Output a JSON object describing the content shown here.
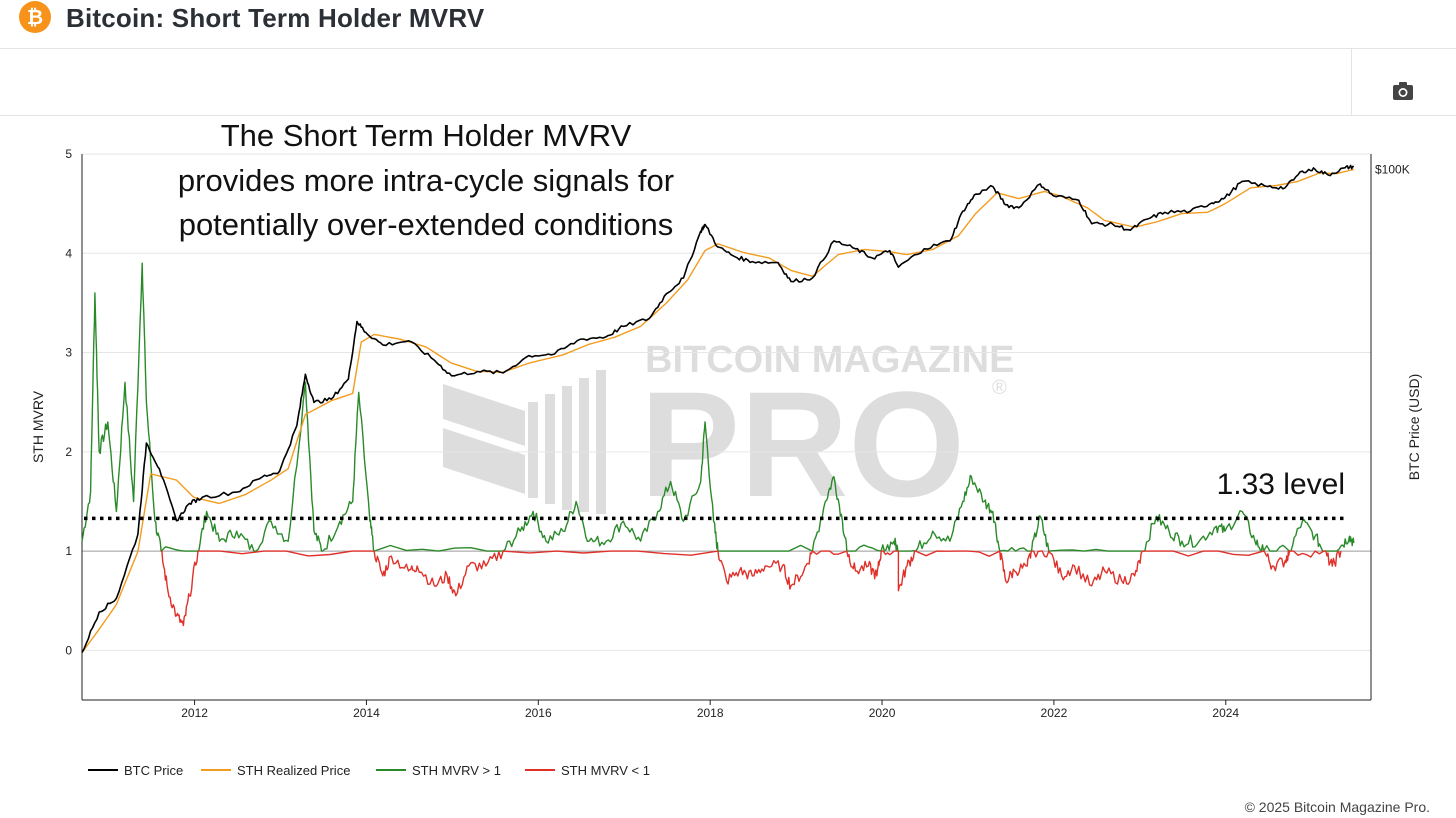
{
  "header": {
    "logo_glyph": "₿",
    "title": "Bitcoin: Short Term Holder MVRV"
  },
  "toolbar": {
    "screenshot_icon": "camera-icon"
  },
  "annotation": {
    "lines": [
      "The Short Term Holder MVRV",
      "provides more intra-cycle signals for",
      "potentially over-extended conditions"
    ],
    "level_label": "1.33 level"
  },
  "watermark": {
    "top": "BITCOIN MAGAZINE",
    "bottom": "PRO",
    "reg": "®"
  },
  "footer": {
    "copyright": "© 2025 Bitcoin Magazine Pro."
  },
  "colors": {
    "btc_price": "#000000",
    "sth_realized": "#f39c1f",
    "mvrv_above": "#2a8a2a",
    "mvrv_below": "#e0302a",
    "level_line": "#000000",
    "grid": "#e6e6e6"
  },
  "chart_data": {
    "type": "line",
    "title": "Bitcoin: Short Term Holder MVRV",
    "ylabel": "STH MVRV",
    "y2label": "BTC Price (USD)",
    "ylim": [
      -0.5,
      5
    ],
    "yticks": [
      "0",
      "1",
      "2",
      "3",
      "4",
      "5"
    ],
    "xticks": [
      "2012",
      "2014",
      "2016",
      "2018",
      "2020",
      "2022",
      "2024"
    ],
    "xlim": [
      2010.7,
      2025.7
    ],
    "y2_scale": "log",
    "y2_tick_label": "$100K",
    "legend_position": "bottom-left",
    "grid": true,
    "reference_lines": [
      {
        "y": 1,
        "style": "solid"
      },
      {
        "y": 1.33,
        "style": "dotted",
        "label": "1.33 level"
      }
    ],
    "series": [
      {
        "name": "BTC Price",
        "axis": "y2",
        "points": [
          [
            2010.7,
            0.06
          ],
          [
            2010.9,
            0.2
          ],
          [
            2011.1,
            0.3
          ],
          [
            2011.35,
            2
          ],
          [
            2011.45,
            30
          ],
          [
            2011.6,
            14
          ],
          [
            2011.8,
            3
          ],
          [
            2011.95,
            5
          ],
          [
            2012.1,
            6
          ],
          [
            2012.5,
            7
          ],
          [
            2012.8,
            11
          ],
          [
            2013.0,
            13
          ],
          [
            2013.2,
            50
          ],
          [
            2013.3,
            230
          ],
          [
            2013.4,
            100
          ],
          [
            2013.6,
            110
          ],
          [
            2013.8,
            200
          ],
          [
            2013.9,
            1100
          ],
          [
            2014.0,
            800
          ],
          [
            2014.2,
            550
          ],
          [
            2014.5,
            620
          ],
          [
            2014.8,
            350
          ],
          [
            2015.0,
            220
          ],
          [
            2015.3,
            250
          ],
          [
            2015.6,
            240
          ],
          [
            2015.9,
            400
          ],
          [
            2016.2,
            420
          ],
          [
            2016.5,
            650
          ],
          [
            2016.8,
            700
          ],
          [
            2017.0,
            950
          ],
          [
            2017.3,
            1200
          ],
          [
            2017.5,
            2500
          ],
          [
            2017.7,
            4000
          ],
          [
            2017.9,
            16000
          ],
          [
            2017.95,
            19500
          ],
          [
            2018.1,
            10000
          ],
          [
            2018.3,
            7500
          ],
          [
            2018.5,
            6500
          ],
          [
            2018.8,
            6300
          ],
          [
            2018.95,
            3600
          ],
          [
            2019.2,
            4000
          ],
          [
            2019.45,
            12000
          ],
          [
            2019.7,
            9500
          ],
          [
            2019.9,
            7200
          ],
          [
            2020.1,
            9000
          ],
          [
            2020.2,
            5500
          ],
          [
            2020.5,
            9500
          ],
          [
            2020.8,
            12000
          ],
          [
            2020.95,
            29000
          ],
          [
            2021.1,
            48000
          ],
          [
            2021.3,
            60000
          ],
          [
            2021.45,
            35000
          ],
          [
            2021.6,
            32000
          ],
          [
            2021.85,
            65000
          ],
          [
            2022.0,
            46000
          ],
          [
            2022.3,
            40000
          ],
          [
            2022.45,
            20000
          ],
          [
            2022.7,
            19500
          ],
          [
            2022.9,
            16500
          ],
          [
            2023.1,
            23000
          ],
          [
            2023.3,
            28000
          ],
          [
            2023.6,
            29000
          ],
          [
            2023.85,
            37000
          ],
          [
            2024.0,
            43000
          ],
          [
            2024.2,
            70000
          ],
          [
            2024.5,
            60000
          ],
          [
            2024.7,
            58000
          ],
          [
            2024.9,
            95000
          ],
          [
            2025.05,
            100000
          ],
          [
            2025.2,
            85000
          ],
          [
            2025.4,
            105000
          ],
          [
            2025.5,
            108000
          ]
        ]
      },
      {
        "name": "STH Realized Price",
        "axis": "y2",
        "points": [
          [
            2010.7,
            0.06
          ],
          [
            2010.9,
            0.12
          ],
          [
            2011.1,
            0.25
          ],
          [
            2011.35,
            1.2
          ],
          [
            2011.5,
            12
          ],
          [
            2011.8,
            10
          ],
          [
            2012.0,
            6
          ],
          [
            2012.3,
            5
          ],
          [
            2012.6,
            6.5
          ],
          [
            2012.9,
            10
          ],
          [
            2013.1,
            14
          ],
          [
            2013.3,
            70
          ],
          [
            2013.6,
            105
          ],
          [
            2013.85,
            130
          ],
          [
            2013.95,
            600
          ],
          [
            2014.1,
            750
          ],
          [
            2014.4,
            650
          ],
          [
            2014.7,
            520
          ],
          [
            2015.0,
            320
          ],
          [
            2015.3,
            250
          ],
          [
            2015.6,
            245
          ],
          [
            2015.9,
            320
          ],
          [
            2016.3,
            410
          ],
          [
            2016.6,
            560
          ],
          [
            2016.9,
            690
          ],
          [
            2017.2,
            950
          ],
          [
            2017.5,
            1900
          ],
          [
            2017.75,
            3800
          ],
          [
            2017.95,
            9000
          ],
          [
            2018.1,
            11000
          ],
          [
            2018.4,
            8500
          ],
          [
            2018.7,
            7200
          ],
          [
            2018.95,
            5000
          ],
          [
            2019.2,
            4200
          ],
          [
            2019.5,
            8000
          ],
          [
            2019.8,
            9300
          ],
          [
            2020.1,
            8700
          ],
          [
            2020.3,
            8000
          ],
          [
            2020.6,
            9300
          ],
          [
            2020.9,
            14000
          ],
          [
            2021.1,
            27000
          ],
          [
            2021.35,
            50000
          ],
          [
            2021.6,
            42000
          ],
          [
            2021.9,
            52000
          ],
          [
            2022.1,
            45000
          ],
          [
            2022.4,
            32000
          ],
          [
            2022.6,
            22000
          ],
          [
            2022.95,
            18000
          ],
          [
            2023.2,
            21000
          ],
          [
            2023.5,
            27000
          ],
          [
            2023.8,
            28000
          ],
          [
            2024.0,
            36000
          ],
          [
            2024.3,
            58000
          ],
          [
            2024.6,
            62000
          ],
          [
            2024.85,
            70000
          ],
          [
            2025.1,
            90000
          ],
          [
            2025.3,
            88000
          ],
          [
            2025.5,
            100000
          ]
        ]
      },
      {
        "name": "STH MVRV > 1",
        "axis": "y",
        "points": [
          [
            2010.7,
            1.1
          ],
          [
            2010.8,
            1.6
          ],
          [
            2010.85,
            3.6
          ],
          [
            2010.9,
            2.0
          ],
          [
            2011.0,
            2.3
          ],
          [
            2011.1,
            1.4
          ],
          [
            2011.2,
            2.7
          ],
          [
            2011.3,
            1.5
          ],
          [
            2011.4,
            3.9
          ],
          [
            2011.45,
            2.5
          ],
          [
            2011.55,
            1.3
          ],
          [
            2011.62,
            1.0
          ],
          [
            2012.05,
            1.0
          ],
          [
            2012.15,
            1.4
          ],
          [
            2012.3,
            1.1
          ],
          [
            2012.5,
            1.2
          ],
          [
            2012.7,
            1.0
          ],
          [
            2012.9,
            1.3
          ],
          [
            2013.1,
            1.1
          ],
          [
            2013.3,
            2.7
          ],
          [
            2013.4,
            1.2
          ],
          [
            2013.5,
            1.0
          ],
          [
            2013.7,
            1.3
          ],
          [
            2013.85,
            1.5
          ],
          [
            2013.92,
            2.6
          ],
          [
            2014.05,
            1.3
          ],
          [
            2014.1,
            1.0
          ],
          [
            2015.6,
            1.0
          ],
          [
            2015.8,
            1.2
          ],
          [
            2015.95,
            1.4
          ],
          [
            2016.1,
            1.1
          ],
          [
            2016.3,
            1.2
          ],
          [
            2016.45,
            1.5
          ],
          [
            2016.6,
            1.1
          ],
          [
            2016.8,
            1.1
          ],
          [
            2017.0,
            1.3
          ],
          [
            2017.2,
            1.1
          ],
          [
            2017.4,
            1.4
          ],
          [
            2017.55,
            1.7
          ],
          [
            2017.7,
            1.3
          ],
          [
            2017.9,
            1.7
          ],
          [
            2017.95,
            2.3
          ],
          [
            2018.05,
            1.3
          ],
          [
            2018.1,
            1.0
          ],
          [
            2019.2,
            1.0
          ],
          [
            2019.35,
            1.5
          ],
          [
            2019.45,
            1.75
          ],
          [
            2019.55,
            1.3
          ],
          [
            2019.6,
            1.0
          ],
          [
            2020.0,
            1.0
          ],
          [
            2020.15,
            1.1
          ],
          [
            2020.2,
            1.0
          ],
          [
            2020.4,
            1.0
          ],
          [
            2020.6,
            1.2
          ],
          [
            2020.8,
            1.1
          ],
          [
            2020.95,
            1.5
          ],
          [
            2021.05,
            1.75
          ],
          [
            2021.2,
            1.5
          ],
          [
            2021.3,
            1.4
          ],
          [
            2021.38,
            1.0
          ],
          [
            2021.75,
            1.0
          ],
          [
            2021.85,
            1.35
          ],
          [
            2021.95,
            1.0
          ],
          [
            2023.05,
            1.0
          ],
          [
            2023.2,
            1.35
          ],
          [
            2023.35,
            1.2
          ],
          [
            2023.5,
            1.1
          ],
          [
            2023.7,
            1.1
          ],
          [
            2023.9,
            1.25
          ],
          [
            2024.0,
            1.2
          ],
          [
            2024.2,
            1.4
          ],
          [
            2024.35,
            1.1
          ],
          [
            2024.45,
            1.0
          ],
          [
            2024.75,
            1.0
          ],
          [
            2024.9,
            1.3
          ],
          [
            2025.05,
            1.15
          ],
          [
            2025.15,
            1.0
          ],
          [
            2025.35,
            1.05
          ],
          [
            2025.45,
            1.15
          ],
          [
            2025.5,
            1.08
          ]
        ]
      },
      {
        "name": "STH MVRV < 1",
        "axis": "y",
        "points": [
          [
            2011.62,
            1.0
          ],
          [
            2011.7,
            0.6
          ],
          [
            2011.8,
            0.35
          ],
          [
            2011.88,
            0.25
          ],
          [
            2011.95,
            0.55
          ],
          [
            2012.05,
            1.0
          ],
          [
            2014.1,
            1.0
          ],
          [
            2014.2,
            0.75
          ],
          [
            2014.3,
            0.95
          ],
          [
            2014.5,
            0.8
          ],
          [
            2014.6,
            0.85
          ],
          [
            2014.8,
            0.65
          ],
          [
            2014.95,
            0.75
          ],
          [
            2015.05,
            0.55
          ],
          [
            2015.2,
            0.85
          ],
          [
            2015.4,
            0.85
          ],
          [
            2015.6,
            1.0
          ],
          [
            2018.1,
            1.0
          ],
          [
            2018.2,
            0.7
          ],
          [
            2018.35,
            0.8
          ],
          [
            2018.5,
            0.75
          ],
          [
            2018.65,
            0.85
          ],
          [
            2018.85,
            0.85
          ],
          [
            2018.95,
            0.65
          ],
          [
            2019.1,
            0.8
          ],
          [
            2019.2,
            1.0
          ],
          [
            2019.6,
            1.0
          ],
          [
            2019.7,
            0.8
          ],
          [
            2019.85,
            0.85
          ],
          [
            2019.95,
            0.75
          ],
          [
            2020.0,
            1.0
          ],
          [
            2020.2,
            1.0
          ],
          [
            2020.2,
            0.6
          ],
          [
            2020.3,
            0.85
          ],
          [
            2020.4,
            1.0
          ],
          [
            2021.38,
            1.0
          ],
          [
            2021.45,
            0.7
          ],
          [
            2021.55,
            0.8
          ],
          [
            2021.7,
            0.85
          ],
          [
            2021.75,
            1.0
          ],
          [
            2021.95,
            1.0
          ],
          [
            2022.1,
            0.75
          ],
          [
            2022.25,
            0.85
          ],
          [
            2022.45,
            0.65
          ],
          [
            2022.6,
            0.8
          ],
          [
            2022.8,
            0.7
          ],
          [
            2022.95,
            0.75
          ],
          [
            2023.05,
            1.0
          ],
          [
            2024.45,
            1.0
          ],
          [
            2024.55,
            0.85
          ],
          [
            2024.7,
            0.9
          ],
          [
            2024.75,
            1.0
          ],
          [
            2025.15,
            1.0
          ],
          [
            2025.25,
            0.85
          ],
          [
            2025.35,
            1.0
          ]
        ]
      }
    ]
  }
}
